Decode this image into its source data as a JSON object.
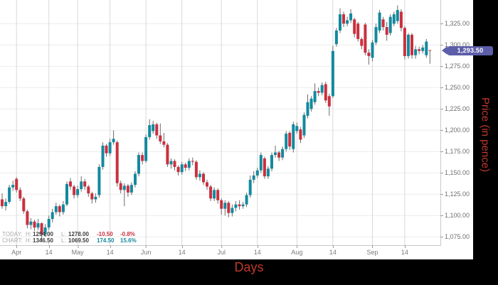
{
  "axes": {
    "x_title": "Days",
    "y_title": "Price (in pence)"
  },
  "price_tag": {
    "label": "1,293.50",
    "value": 1293.5,
    "color": "#5c5ea9"
  },
  "legend": {
    "rows": [
      {
        "name": "TODAY:",
        "h_label": "H:",
        "h_value": "1294.00",
        "l_label": "L:",
        "l_value": "1278.00",
        "change": "-10.50",
        "percent": "-0.8%",
        "tone": "negative"
      },
      {
        "name": "CHART:",
        "h_label": "H:",
        "h_value": "1346.50",
        "l_label": "L:",
        "l_value": "1069.50",
        "change": "174.50",
        "percent": "15.6%",
        "tone": "positive"
      }
    ]
  },
  "colors": {
    "up": "#13899e",
    "down": "#cb2f3e",
    "wick": "#6b6b6b",
    "grid_h": "#ececec",
    "grid_v": "#d9d9d9",
    "plot_border": "#c9c9c9",
    "axis_title": "#c0392b",
    "tag": "#5c5ea9",
    "background": "#000000",
    "panel": "#ffffff"
  },
  "chart_data": {
    "type": "candlestick",
    "xlabel": "Days",
    "ylabel": "Price (in pence)",
    "grid": true,
    "ylim": [
      1065,
      1347
    ],
    "y_ticks": [
      {
        "value": 1325,
        "label": "1,325.00"
      },
      {
        "value": 1300,
        "label": "1,300.00"
      },
      {
        "value": 1275,
        "label": "1,275.00"
      },
      {
        "value": 1250,
        "label": "1,250.00"
      },
      {
        "value": 1225,
        "label": "1,225.00"
      },
      {
        "value": 1200,
        "label": "1,200.00"
      },
      {
        "value": 1175,
        "label": "1,175.00"
      },
      {
        "value": 1150,
        "label": "1,150.00"
      },
      {
        "value": 1125,
        "label": "1,125.00"
      },
      {
        "value": 1100,
        "label": "1,100.00"
      },
      {
        "value": 1075,
        "label": "1,075.00"
      }
    ],
    "x_ticks": [
      {
        "label": "Apr",
        "pos": 4
      },
      {
        "label": "14",
        "pos": 13
      },
      {
        "label": "May",
        "pos": 21
      },
      {
        "label": "14",
        "pos": 30
      },
      {
        "label": "Jun",
        "pos": 40
      },
      {
        "label": "14",
        "pos": 50
      },
      {
        "label": "Jul",
        "pos": 61
      },
      {
        "label": "14",
        "pos": 71
      },
      {
        "label": "Aug",
        "pos": 82
      },
      {
        "label": "14",
        "pos": 92
      },
      {
        "label": "Sep",
        "pos": 103
      },
      {
        "label": "14",
        "pos": 112
      }
    ],
    "last_price": 1293.5,
    "today": {
      "high": 1294.0,
      "low": 1278.0,
      "change": -10.5,
      "change_pct": -0.8
    },
    "chart_summary": {
      "high": 1346.5,
      "low": 1069.5,
      "change": 174.5,
      "change_pct": 15.6
    },
    "candles_format": [
      "open",
      "high",
      "low",
      "close"
    ],
    "candles": [
      [
        1119,
        1126,
        1108,
        1111
      ],
      [
        1111,
        1120,
        1106,
        1116
      ],
      [
        1116,
        1136,
        1114,
        1133
      ],
      [
        1133,
        1141,
        1129,
        1136
      ],
      [
        1143,
        1145,
        1127,
        1130
      ],
      [
        1130,
        1133,
        1117,
        1120
      ],
      [
        1120,
        1122,
        1102,
        1105
      ],
      [
        1105,
        1107,
        1085,
        1089
      ],
      [
        1089,
        1097,
        1084,
        1093
      ],
      [
        1093,
        1095,
        1082,
        1086
      ],
      [
        1086,
        1096,
        1083,
        1091
      ],
      [
        1091,
        1092,
        1069.5,
        1078
      ],
      [
        1078,
        1090,
        1075,
        1086
      ],
      [
        1086,
        1100,
        1083,
        1096
      ],
      [
        1096,
        1108,
        1092,
        1104
      ],
      [
        1104,
        1115,
        1101,
        1111
      ],
      [
        1111,
        1113,
        1099,
        1104
      ],
      [
        1104,
        1117,
        1101,
        1113
      ],
      [
        1113,
        1140,
        1111,
        1137
      ],
      [
        1140,
        1144,
        1130,
        1134
      ],
      [
        1134,
        1136,
        1120,
        1124
      ],
      [
        1124,
        1135,
        1121,
        1131
      ],
      [
        1131,
        1146,
        1128,
        1140
      ],
      [
        1140,
        1143,
        1130,
        1134
      ],
      [
        1134,
        1136,
        1122,
        1126
      ],
      [
        1126,
        1128,
        1114,
        1119
      ],
      [
        1119,
        1126,
        1115,
        1122
      ],
      [
        1124,
        1160,
        1121,
        1157
      ],
      [
        1157,
        1186,
        1154,
        1182
      ],
      [
        1182,
        1184,
        1169,
        1173
      ],
      [
        1173,
        1190,
        1170,
        1186
      ],
      [
        1186,
        1200,
        1183,
        1190
      ],
      [
        1186,
        1188,
        1134,
        1138
      ],
      [
        1138,
        1141,
        1126,
        1130
      ],
      [
        1130,
        1138,
        1111,
        1135
      ],
      [
        1135,
        1137,
        1122,
        1127
      ],
      [
        1127,
        1139,
        1124,
        1136
      ],
      [
        1136,
        1152,
        1133,
        1149
      ],
      [
        1149,
        1174,
        1146,
        1171
      ],
      [
        1171,
        1174,
        1160,
        1164
      ],
      [
        1164,
        1195,
        1162,
        1192
      ],
      [
        1192,
        1213,
        1189,
        1206
      ],
      [
        1199,
        1211,
        1196,
        1207
      ],
      [
        1207,
        1209,
        1190,
        1194
      ],
      [
        1194,
        1208,
        1184,
        1187
      ],
      [
        1187,
        1197,
        1180,
        1183
      ],
      [
        1183,
        1185,
        1157,
        1160
      ],
      [
        1160,
        1167,
        1155,
        1164
      ],
      [
        1164,
        1166,
        1153,
        1157
      ],
      [
        1157,
        1159,
        1147,
        1151
      ],
      [
        1151,
        1163,
        1148,
        1160
      ],
      [
        1160,
        1162,
        1152,
        1156
      ],
      [
        1156,
        1167,
        1153,
        1164
      ],
      [
        1164,
        1168,
        1159,
        1163
      ],
      [
        1163,
        1165,
        1142,
        1145
      ],
      [
        1145,
        1153,
        1141,
        1149
      ],
      [
        1149,
        1151,
        1136,
        1139
      ],
      [
        1139,
        1142,
        1130,
        1134
      ],
      [
        1134,
        1136,
        1117,
        1120
      ],
      [
        1120,
        1133,
        1117,
        1130
      ],
      [
        1130,
        1132,
        1114,
        1118
      ],
      [
        1118,
        1120,
        1101,
        1108
      ],
      [
        1108,
        1118,
        1100,
        1115
      ],
      [
        1115,
        1117,
        1098,
        1103
      ],
      [
        1103,
        1113,
        1099,
        1109
      ],
      [
        1109,
        1117,
        1105,
        1113
      ],
      [
        1113,
        1118,
        1107,
        1111
      ],
      [
        1111,
        1116,
        1108,
        1113
      ],
      [
        1113,
        1127,
        1110,
        1124
      ],
      [
        1124,
        1147,
        1121,
        1142
      ],
      [
        1142,
        1152,
        1138,
        1147
      ],
      [
        1147,
        1156,
        1144,
        1153
      ],
      [
        1153,
        1174,
        1150,
        1171
      ],
      [
        1167,
        1169,
        1143,
        1146
      ],
      [
        1146,
        1158,
        1143,
        1155
      ],
      [
        1155,
        1174,
        1152,
        1171
      ],
      [
        1171,
        1182,
        1168,
        1174
      ],
      [
        1174,
        1176,
        1164,
        1168
      ],
      [
        1168,
        1181,
        1165,
        1178
      ],
      [
        1178,
        1199,
        1175,
        1196
      ],
      [
        1197,
        1199,
        1177,
        1181
      ],
      [
        1178,
        1210,
        1174,
        1207
      ],
      [
        1199,
        1209,
        1196,
        1205
      ],
      [
        1201,
        1204,
        1185,
        1189
      ],
      [
        1194,
        1221,
        1191,
        1218
      ],
      [
        1217,
        1242,
        1214,
        1233
      ],
      [
        1225,
        1240,
        1222,
        1237
      ],
      [
        1233,
        1255,
        1230,
        1246
      ],
      [
        1246,
        1250,
        1240,
        1244
      ],
      [
        1244,
        1256,
        1241,
        1253
      ],
      [
        1254,
        1257,
        1232,
        1235
      ],
      [
        1240,
        1243,
        1217,
        1228
      ],
      [
        1240,
        1299,
        1238,
        1293
      ],
      [
        1301,
        1320,
        1298,
        1317
      ],
      [
        1317,
        1343,
        1314,
        1336
      ],
      [
        1336,
        1339,
        1321,
        1325
      ],
      [
        1325,
        1333,
        1322,
        1329
      ],
      [
        1329,
        1342,
        1326,
        1337
      ],
      [
        1330,
        1332,
        1309,
        1313
      ],
      [
        1325,
        1327,
        1304,
        1307
      ],
      [
        1307,
        1309,
        1295,
        1299
      ],
      [
        1324,
        1326,
        1288,
        1291
      ],
      [
        1291,
        1295,
        1277,
        1287
      ],
      [
        1285,
        1306,
        1281,
        1303
      ],
      [
        1303,
        1325,
        1300,
        1321
      ],
      [
        1317,
        1341,
        1314,
        1338
      ],
      [
        1330,
        1333,
        1317,
        1321
      ],
      [
        1321,
        1327,
        1305,
        1312
      ],
      [
        1314,
        1336,
        1311,
        1333
      ],
      [
        1325,
        1339,
        1322,
        1336
      ],
      [
        1328,
        1346.5,
        1325,
        1341
      ],
      [
        1339,
        1342,
        1316,
        1320
      ],
      [
        1320,
        1322,
        1283,
        1287
      ],
      [
        1287,
        1314,
        1284,
        1312
      ],
      [
        1312,
        1314,
        1284,
        1288
      ],
      [
        1288,
        1299,
        1284,
        1295
      ],
      [
        1295,
        1298,
        1289,
        1293
      ],
      [
        1293,
        1300,
        1290,
        1297
      ],
      [
        1288,
        1307,
        1285,
        1304
      ],
      [
        1294,
        1294,
        1278,
        1293.5
      ]
    ]
  }
}
